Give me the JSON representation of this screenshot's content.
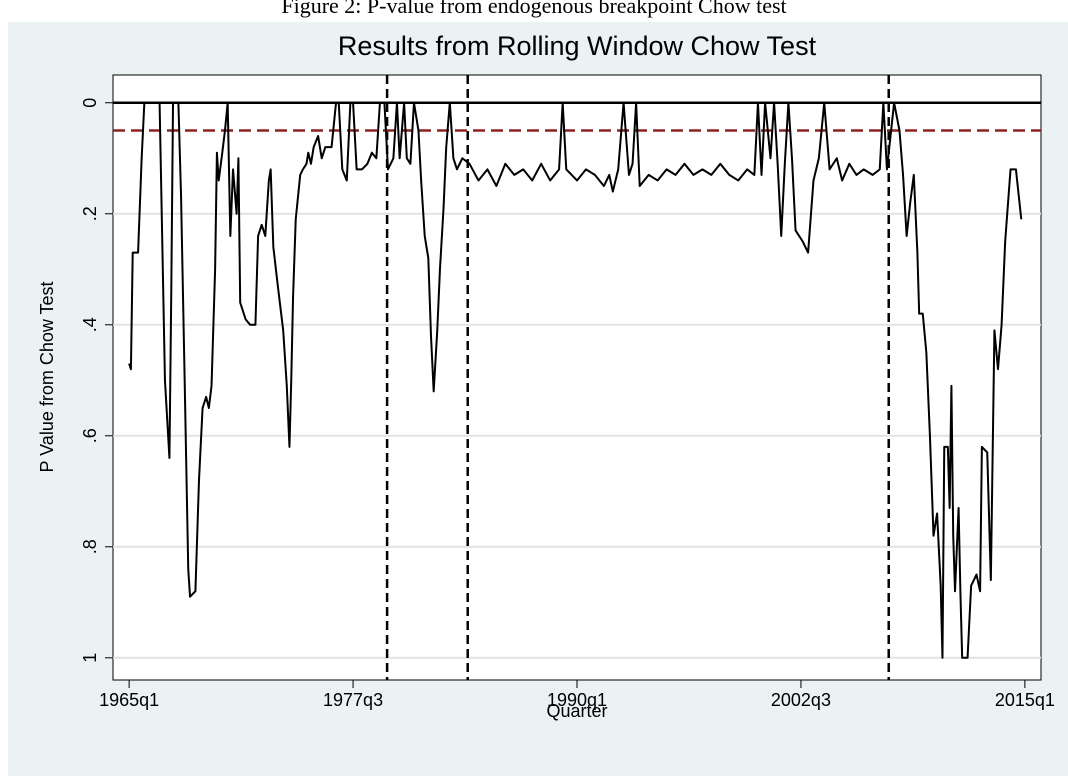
{
  "chart_data": {
    "type": "line",
    "caption": "Figure 2: P-value from endogenous breakpoint Chow test",
    "title": "Results from Rolling Window Chow Test",
    "x_label": "Quarter",
    "y_label": "P Value from Chow Test",
    "color": "#000000",
    "xlim": [
      1964.1,
      2015.9
    ],
    "ylim": [
      -0.05,
      1.04
    ],
    "y_reversed": true,
    "grid": true,
    "xticks": [
      {
        "value": 1965,
        "label": "1965q1"
      },
      {
        "value": 1977.5,
        "label": "1977q3"
      },
      {
        "value": 1990,
        "label": "1990q1"
      },
      {
        "value": 2002.5,
        "label": "2002q3"
      },
      {
        "value": 2015,
        "label": "2015q1"
      }
    ],
    "yticks": [
      0,
      {
        "value": 0.2,
        "label": ".2"
      },
      {
        "value": 0.4,
        "label": ".4"
      },
      {
        "value": 0.6,
        "label": ".6"
      },
      {
        "value": 0.8,
        "label": ".8"
      },
      1
    ],
    "hlines": [
      {
        "value": 0,
        "color": "#000000",
        "dashed": false
      },
      {
        "value": 0.05,
        "color": "#8b2323",
        "dashed": true
      }
    ],
    "vlines": [
      {
        "value": 1979.4,
        "color": "#000000",
        "dashed": true
      },
      {
        "value": 1983.9,
        "color": "#000000",
        "dashed": true
      },
      {
        "value": 2007.4,
        "color": "#000000",
        "dashed": true
      }
    ],
    "x": [
      1965.0,
      1965.1,
      1965.2,
      1965.5,
      1965.7,
      1965.85,
      1966.7,
      1967.0,
      1967.25,
      1967.35,
      1967.45,
      1967.75,
      1967.9,
      1968.1,
      1968.3,
      1968.4,
      1968.7,
      1968.9,
      1969.1,
      1969.3,
      1969.45,
      1969.6,
      1969.8,
      1969.9,
      1970.0,
      1970.2,
      1970.35,
      1970.5,
      1970.65,
      1970.8,
      1971.0,
      1971.1,
      1971.2,
      1971.5,
      1971.75,
      1972.05,
      1972.2,
      1972.4,
      1972.6,
      1972.8,
      1972.9,
      1973.05,
      1973.3,
      1973.6,
      1973.8,
      1973.95,
      1974.05,
      1974.15,
      1974.3,
      1974.55,
      1974.7,
      1974.9,
      1975.0,
      1975.15,
      1975.3,
      1975.55,
      1975.75,
      1975.95,
      1976.3,
      1976.55,
      1976.7,
      1976.9,
      1977.15,
      1977.35,
      1977.5,
      1977.7,
      1978.0,
      1978.3,
      1978.55,
      1978.8,
      1979.0,
      1979.25,
      1979.45,
      1979.75,
      1979.95,
      1980.1,
      1980.35,
      1980.5,
      1980.7,
      1980.9,
      1981.15,
      1981.3,
      1981.5,
      1981.7,
      1981.85,
      1982.0,
      1982.2,
      1982.35,
      1982.55,
      1982.7,
      1982.9,
      1983.1,
      1983.3,
      1983.6,
      1984.0,
      1984.5,
      1985.0,
      1985.5,
      1986.0,
      1986.5,
      1987.0,
      1987.5,
      1988.0,
      1988.5,
      1989.0,
      1989.2,
      1989.4,
      1990.0,
      1990.5,
      1991.0,
      1991.5,
      1991.8,
      1992.0,
      1992.3,
      1992.6,
      1992.9,
      1993.1,
      1993.3,
      1993.5,
      1994.0,
      1994.5,
      1995.0,
      1995.5,
      1996.0,
      1996.5,
      1997.0,
      1997.5,
      1998.0,
      1998.5,
      1999.0,
      1999.5,
      1999.9,
      2000.1,
      2000.3,
      2000.5,
      2000.8,
      2001.0,
      2001.2,
      2001.4,
      2001.6,
      2001.8,
      2002.0,
      2002.2,
      2002.6,
      2002.9,
      2003.2,
      2003.5,
      2003.8,
      2004.1,
      2004.5,
      2004.8,
      2005.2,
      2005.6,
      2006.0,
      2006.5,
      2006.9,
      2007.1,
      2007.3,
      2007.5,
      2007.7,
      2008.0,
      2008.2,
      2008.4,
      2008.6,
      2008.8,
      2009.0,
      2009.1,
      2009.3,
      2009.5,
      2009.7,
      2009.9,
      2010.1,
      2010.3,
      2010.4,
      2010.5,
      2010.7,
      2010.8,
      2010.9,
      2011.0,
      2011.1,
      2011.3,
      2011.4,
      2011.5,
      2011.8,
      2012.0,
      2012.3,
      2012.5,
      2012.6,
      2012.9,
      2013.1,
      2013.3,
      2013.5,
      2013.7,
      2013.9,
      2014.2,
      2014.5,
      2014.8
    ],
    "values": [
      0.47,
      0.48,
      0.27,
      0.27,
      0.1,
      0,
      0,
      0.5,
      0.64,
      0.35,
      0,
      0,
      0.17,
      0.5,
      0.84,
      0.89,
      0.88,
      0.68,
      0.55,
      0.53,
      0.55,
      0.51,
      0.3,
      0.09,
      0.14,
      0.09,
      0.05,
      0,
      0.24,
      0.12,
      0.2,
      0.1,
      0.36,
      0.39,
      0.4,
      0.4,
      0.24,
      0.22,
      0.24,
      0.14,
      0.12,
      0.26,
      0.33,
      0.41,
      0.51,
      0.62,
      0.5,
      0.35,
      0.21,
      0.13,
      0.12,
      0.11,
      0.09,
      0.11,
      0.08,
      0.06,
      0.1,
      0.08,
      0.08,
      0,
      0,
      0.12,
      0.14,
      0,
      0,
      0.12,
      0.12,
      0.11,
      0.09,
      0.1,
      0,
      0,
      0.12,
      0.1,
      0,
      0.1,
      0,
      0.1,
      0.11,
      0,
      0.05,
      0.14,
      0.24,
      0.28,
      0.42,
      0.52,
      0.41,
      0.3,
      0.19,
      0.08,
      0,
      0.1,
      0.12,
      0.1,
      0.11,
      0.14,
      0.12,
      0.15,
      0.11,
      0.13,
      0.12,
      0.14,
      0.11,
      0.14,
      0.12,
      0,
      0.12,
      0.14,
      0.12,
      0.13,
      0.15,
      0.13,
      0.16,
      0.12,
      0,
      0.13,
      0.11,
      0,
      0.15,
      0.13,
      0.14,
      0.12,
      0.13,
      0.11,
      0.13,
      0.12,
      0.13,
      0.11,
      0.13,
      0.14,
      0.12,
      0.13,
      0,
      0.13,
      0,
      0.1,
      0,
      0.11,
      0.24,
      0.11,
      0,
      0.1,
      0.23,
      0.25,
      0.27,
      0.14,
      0.1,
      0,
      0.12,
      0.1,
      0.14,
      0.11,
      0.13,
      0.12,
      0.13,
      0.12,
      0,
      0.12,
      0.06,
      0,
      0.05,
      0.13,
      0.24,
      0.18,
      0.13,
      0.27,
      0.38,
      0.38,
      0.45,
      0.6,
      0.78,
      0.74,
      0.87,
      1.0,
      0.62,
      0.62,
      0.73,
      0.51,
      0.78,
      0.88,
      0.73,
      0.88,
      1.0,
      1.0,
      0.87,
      0.85,
      0.88,
      0.62,
      0.63,
      0.86,
      0.41,
      0.48,
      0.4,
      0.25,
      0.12,
      0.12,
      0.21
    ]
  }
}
